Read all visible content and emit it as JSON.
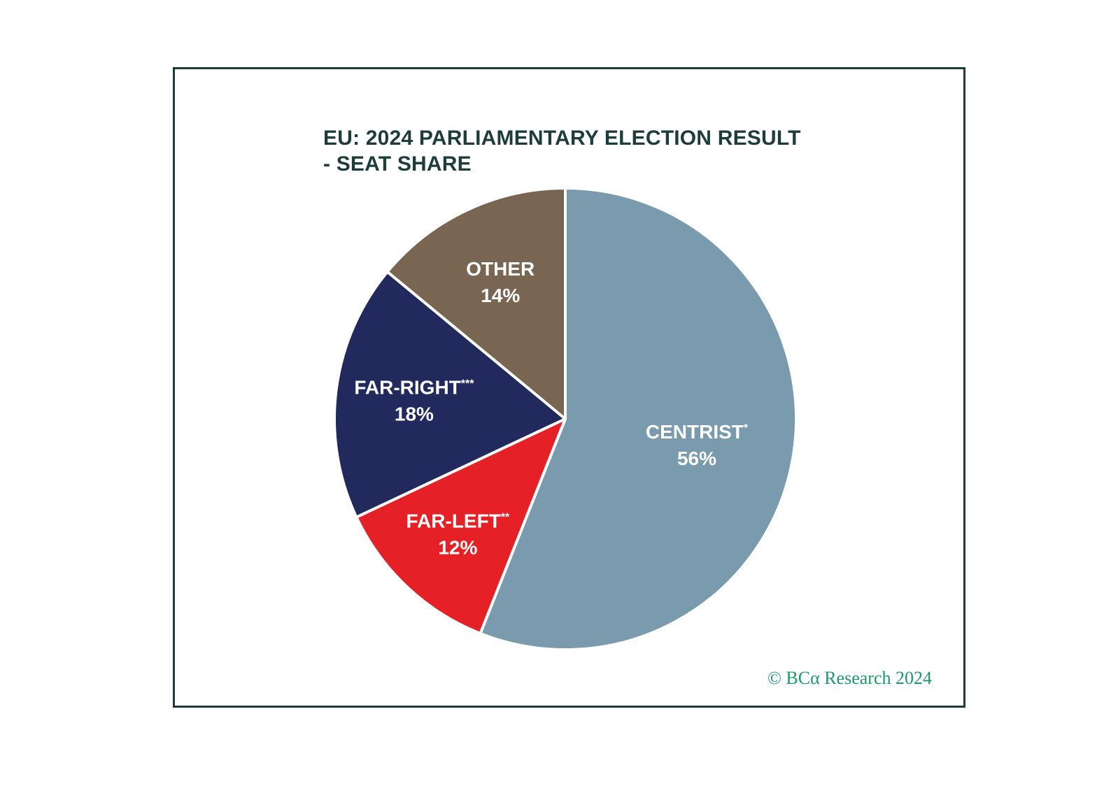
{
  "chart_data": {
    "type": "pie",
    "title_lines": [
      "EU: 2024 PARLIAMENTARY ELECTION RESULT",
      "- SEAT SHARE"
    ],
    "unit": "%",
    "slices": [
      {
        "label": "CENTRIST",
        "marker": "*",
        "value": 56,
        "value_label": "56%",
        "color": "#7a9aae"
      },
      {
        "label": "FAR-LEFT",
        "marker": "**",
        "value": 12,
        "value_label": "12%",
        "color": "#e52027"
      },
      {
        "label": "FAR-RIGHT",
        "marker": "***",
        "value": 18,
        "value_label": "18%",
        "color": "#21295d"
      },
      {
        "label": "OTHER",
        "marker": "",
        "value": 14,
        "value_label": "14%",
        "color": "#786653"
      }
    ],
    "start_angle": "top, clockwise"
  },
  "credit": "© BCα Research 2024",
  "colors": {
    "frame": "#1e3d3a",
    "title": "#1e3d3a",
    "credit": "#1c9a6a",
    "slice_border": "#ffffff"
  }
}
